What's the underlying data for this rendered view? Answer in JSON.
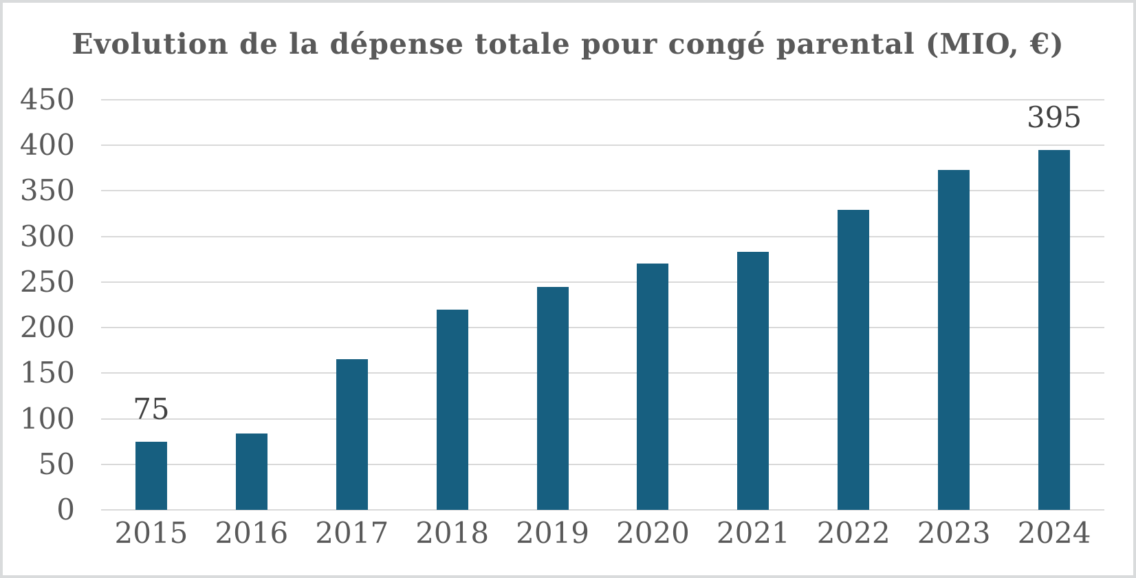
{
  "chart_data": {
    "type": "bar",
    "title": "Evolution de la dépense totale pour congé parental (MIO, €)",
    "categories": [
      "2015",
      "2016",
      "2017",
      "2018",
      "2019",
      "2020",
      "2021",
      "2022",
      "2023",
      "2024"
    ],
    "values": [
      75,
      84,
      165,
      220,
      245,
      270,
      283,
      329,
      373,
      395
    ],
    "data_labels": [
      {
        "category": "2015",
        "text": "75"
      },
      {
        "category": "2024",
        "text": "395"
      }
    ],
    "xlabel": "",
    "ylabel": "",
    "ylim": [
      0,
      450
    ],
    "yticks": [
      0,
      50,
      100,
      150,
      200,
      250,
      300,
      350,
      400,
      450
    ],
    "grid": true,
    "legend": "none",
    "colors": {
      "bar": "#175F80",
      "gridline": "#D9D9D9",
      "axis_text": "#595959",
      "data_label_text": "#404040",
      "title_text": "#595959",
      "frame_border": "#D9DBDC",
      "background": "#FFFFFF"
    }
  }
}
